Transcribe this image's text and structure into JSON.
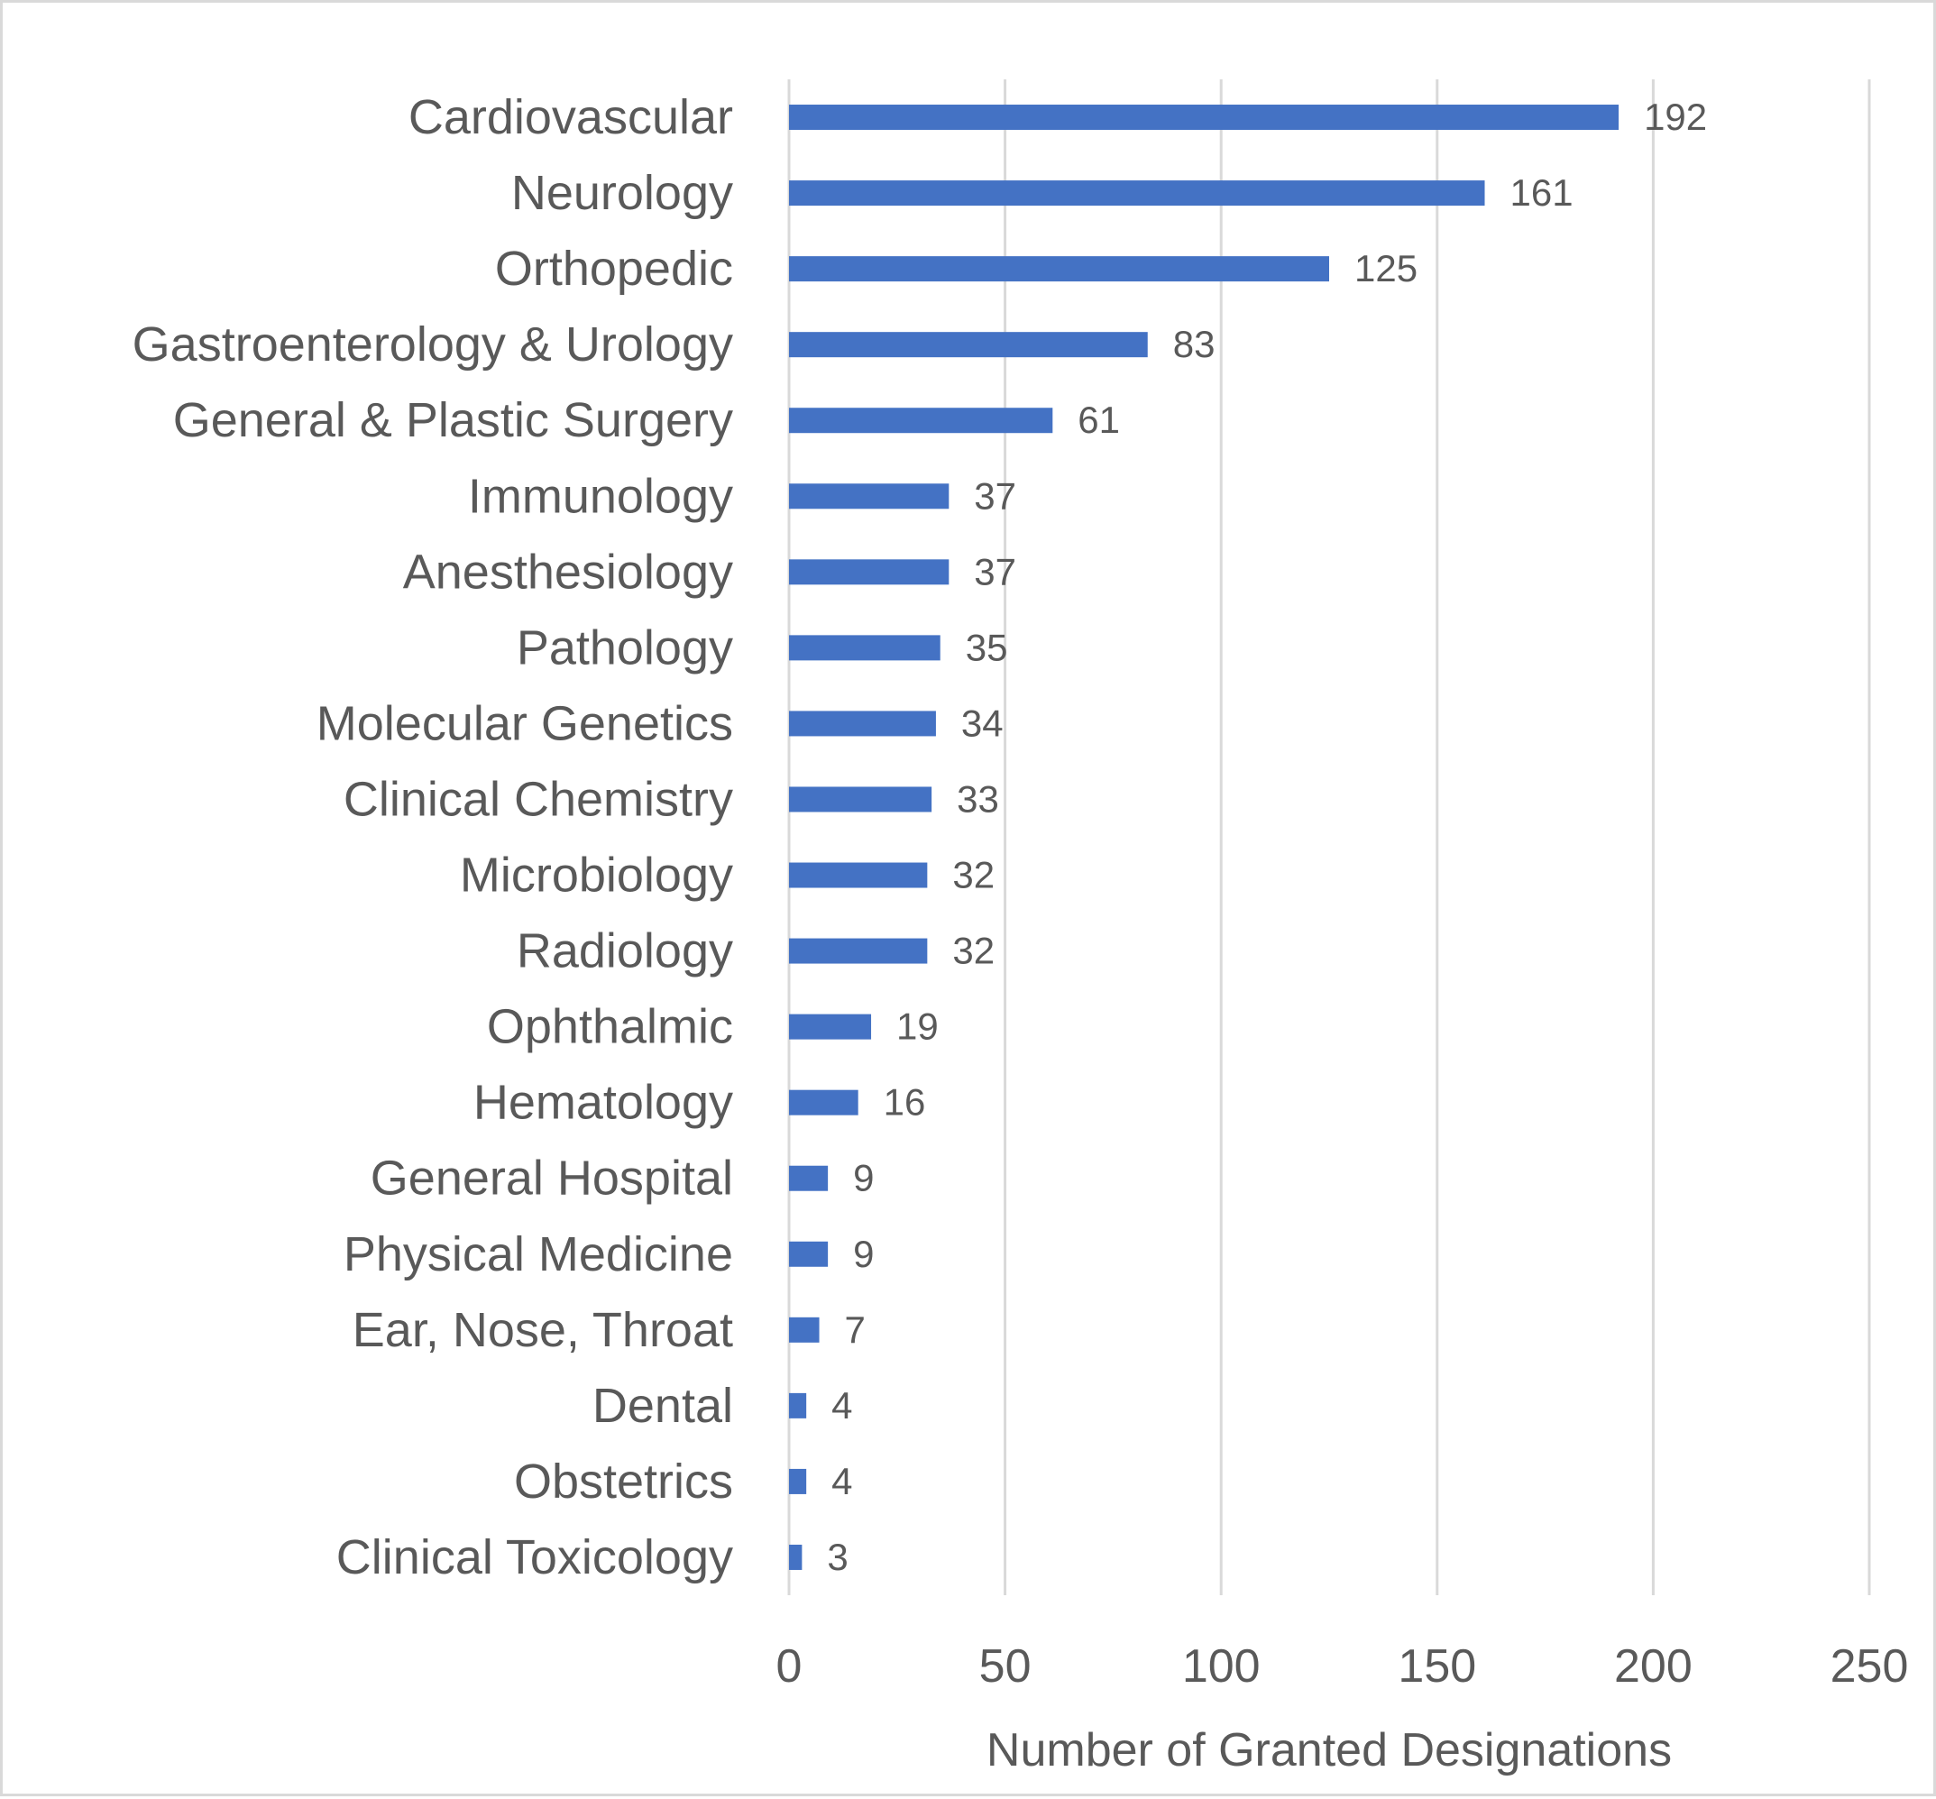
{
  "chart_data": {
    "type": "bar",
    "orientation": "horizontal",
    "categories": [
      "Cardiovascular",
      "Neurology",
      "Orthopedic",
      "Gastroenterology & Urology",
      "General & Plastic Surgery",
      "Immunology",
      "Anesthesiology",
      "Pathology",
      "Molecular Genetics",
      "Clinical Chemistry",
      "Microbiology",
      "Radiology",
      "Ophthalmic",
      "Hematology",
      "General Hospital",
      "Physical Medicine",
      "Ear, Nose, Throat",
      "Dental",
      "Obstetrics",
      "Clinical Toxicology"
    ],
    "values": [
      192,
      161,
      125,
      83,
      61,
      37,
      37,
      35,
      34,
      33,
      32,
      32,
      19,
      16,
      9,
      9,
      7,
      4,
      4,
      3
    ],
    "title": "",
    "xlabel": "Number of Granted Designations",
    "ylabel": "",
    "xlim": [
      0,
      250
    ],
    "xticks": [
      "0",
      "50",
      "100",
      "150",
      "200",
      "250"
    ],
    "grid": true,
    "legend": "none",
    "data_labels": true,
    "bar_color": "#4472C4"
  }
}
